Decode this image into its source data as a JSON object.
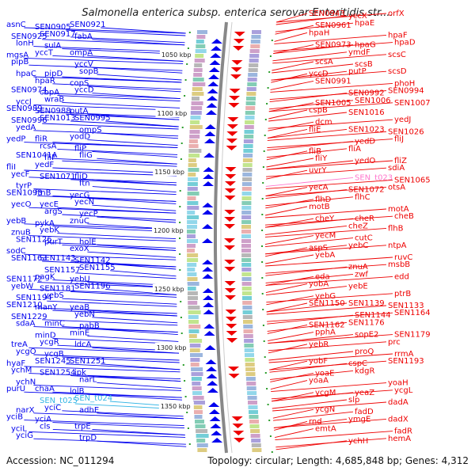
{
  "title": "Salmonella enterica subsp. enterica serovar Enteritidis str....",
  "footer": {
    "accession": "Accession: NC_011294",
    "summary": "Topology: circular; Length: 4,685,848 bp; Genes: 4,312"
  },
  "colors": {
    "reverse_strand": "#0000ee",
    "forward_strand": "#ee0000",
    "trna_rna": "#33b5e5",
    "highlight": "#ff77cc",
    "backbone": "#888888",
    "tick": "#2a9d2a"
  },
  "scale_labels": [
    "1050 kbp",
    "1100 kbp",
    "1150 kbp",
    "1200 kbp",
    "1250 kbp",
    "1300 kbp",
    "1350 kbp"
  ],
  "left_labels": [
    {
      "t": "asnC",
      "c": "blue"
    },
    {
      "t": "SEN0905",
      "c": "blue"
    },
    {
      "t": "SEN0921",
      "c": "blue"
    },
    {
      "t": "SEN0925",
      "c": "blue"
    },
    {
      "t": "SEN0917",
      "c": "blue"
    },
    {
      "t": "fabA",
      "c": "blue"
    },
    {
      "t": "lonH",
      "c": "blue"
    },
    {
      "t": "sulA",
      "c": "blue"
    },
    {
      "t": "ompA",
      "c": "blue"
    },
    {
      "t": "mgsA",
      "c": "blue"
    },
    {
      "t": "yccT",
      "c": "blue"
    },
    {
      "t": "yccV",
      "c": "blue"
    },
    {
      "t": "pipB",
      "c": "blue"
    },
    {
      "t": "pipD",
      "c": "blue"
    },
    {
      "t": "sopB",
      "c": "blue"
    },
    {
      "t": "hpaC",
      "c": "blue"
    },
    {
      "t": "hpaR",
      "c": "blue"
    },
    {
      "t": "copS",
      "c": "blue"
    },
    {
      "t": "SEN0974",
      "c": "blue"
    },
    {
      "t": "cbpA",
      "c": "blue"
    },
    {
      "t": "yccD",
      "c": "blue"
    },
    {
      "t": "yccJ",
      "c": "blue"
    },
    {
      "t": "wraB",
      "c": "blue"
    },
    {
      "t": "putA",
      "c": "blue"
    },
    {
      "t": "SEN0989",
      "c": "blue"
    },
    {
      "t": "SEN0988",
      "c": "blue"
    },
    {
      "t": "SEN0995",
      "c": "blue"
    },
    {
      "t": "SEN0996",
      "c": "blue"
    },
    {
      "t": "SEN1013",
      "c": "blue"
    },
    {
      "t": "ompS",
      "c": "blue"
    },
    {
      "t": "yedA",
      "c": "blue"
    },
    {
      "t": "fliR",
      "c": "blue"
    },
    {
      "t": "yodD",
      "c": "blue"
    },
    {
      "t": "yedP",
      "c": "blue"
    },
    {
      "t": "rcsA",
      "c": "blue"
    },
    {
      "t": "fliP",
      "c": "blue"
    },
    {
      "t": "SEN1041A",
      "c": "blue"
    },
    {
      "t": "fliF",
      "c": "blue"
    },
    {
      "t": "fliG",
      "c": "blue"
    },
    {
      "t": "fliI",
      "c": "blue"
    },
    {
      "t": "yedF",
      "c": "blue"
    },
    {
      "t": "fliD",
      "c": "blue"
    },
    {
      "t": "yecF",
      "c": "blue"
    },
    {
      "t": "SEN1071",
      "c": "blue"
    },
    {
      "t": "ftn",
      "c": "blue"
    },
    {
      "t": "tyrP",
      "c": "blue"
    },
    {
      "t": "ftnB",
      "c": "blue"
    },
    {
      "t": "yecG",
      "c": "blue"
    },
    {
      "t": "SEN1093",
      "c": "blue"
    },
    {
      "t": "yecE",
      "c": "blue"
    },
    {
      "t": "yecN",
      "c": "blue"
    },
    {
      "t": "yecO",
      "c": "blue"
    },
    {
      "t": "argS",
      "c": "blue"
    },
    {
      "t": "yecP",
      "c": "blue"
    },
    {
      "t": "yebB",
      "c": "blue"
    },
    {
      "t": "pykA",
      "c": "blue"
    },
    {
      "t": "znuC",
      "c": "blue"
    },
    {
      "t": "znuB",
      "c": "blue"
    },
    {
      "t": "yebK",
      "c": "blue"
    },
    {
      "t": "holE",
      "c": "blue"
    },
    {
      "t": "SEN1126",
      "c": "blue"
    },
    {
      "t": "purT",
      "c": "blue"
    },
    {
      "t": "exoX",
      "c": "blue"
    },
    {
      "t": "sodC",
      "c": "blue"
    },
    {
      "t": "SEN1143",
      "c": "blue"
    },
    {
      "t": "SEN1142",
      "c": "blue"
    },
    {
      "t": "SEN1163",
      "c": "blue"
    },
    {
      "t": "SEN1157",
      "c": "blue"
    },
    {
      "t": "SEN1155",
      "c": "blue"
    },
    {
      "t": "SEN1172",
      "c": "blue"
    },
    {
      "t": "pagK",
      "c": "blue"
    },
    {
      "t": "yebU",
      "c": "blue"
    },
    {
      "t": "yebW",
      "c": "blue"
    },
    {
      "t": "SEN1181",
      "c": "blue"
    },
    {
      "t": "SEN1196",
      "c": "blue"
    },
    {
      "t": "SEN1194",
      "c": "blue"
    },
    {
      "t": "yebS",
      "c": "blue"
    },
    {
      "t": "yeaB",
      "c": "blue"
    },
    {
      "t": "SEN1210",
      "c": "blue"
    },
    {
      "t": "manY",
      "c": "blue"
    },
    {
      "t": "yebN",
      "c": "blue"
    },
    {
      "t": "SEN1229",
      "c": "blue"
    },
    {
      "t": "minC",
      "c": "blue"
    },
    {
      "t": "pabB",
      "c": "blue"
    },
    {
      "t": "sdaA",
      "c": "blue"
    },
    {
      "t": "minD",
      "c": "blue"
    },
    {
      "t": "minE",
      "c": "blue"
    },
    {
      "t": "treA",
      "c": "blue"
    },
    {
      "t": "ycgR",
      "c": "blue"
    },
    {
      "t": "ldcA",
      "c": "blue"
    },
    {
      "t": "ycgO",
      "c": "blue"
    },
    {
      "t": "ycgB",
      "c": "blue"
    },
    {
      "t": "SEN1251",
      "c": "blue"
    },
    {
      "t": "hyaF",
      "c": "blue"
    },
    {
      "t": "SEN1245",
      "c": "blue"
    },
    {
      "t": "ipk",
      "c": "blue"
    },
    {
      "t": "ychM",
      "c": "blue"
    },
    {
      "t": "SEN1254",
      "c": "blue"
    },
    {
      "t": "narL",
      "c": "blue"
    },
    {
      "t": "ychN",
      "c": "blue"
    },
    {
      "t": "chaA",
      "c": "blue"
    },
    {
      "t": "lolB",
      "c": "blue"
    },
    {
      "t": "purU",
      "c": "blue"
    },
    {
      "t": "SEN_t025",
      "c": "cyan"
    },
    {
      "t": "SEN_t024",
      "c": "cyan"
    },
    {
      "t": "narX",
      "c": "blue"
    },
    {
      "t": "yciC",
      "c": "blue"
    },
    {
      "t": "adhE",
      "c": "blue"
    },
    {
      "t": "yciB",
      "c": "blue"
    },
    {
      "t": "yciA",
      "c": "blue"
    },
    {
      "t": "trpE",
      "c": "blue"
    },
    {
      "t": "yciL",
      "c": "blue"
    },
    {
      "t": "cls",
      "c": "blue"
    },
    {
      "t": "trpD",
      "c": "blue"
    },
    {
      "t": "yciG",
      "c": "blue"
    }
  ],
  "right_labels": [
    {
      "t": "SEN0943",
      "c": "red"
    },
    {
      "t": "yccX",
      "c": "red"
    },
    {
      "t": "orfX",
      "c": "red"
    },
    {
      "t": "SEN0961",
      "c": "red"
    },
    {
      "t": "hpaE",
      "c": "red"
    },
    {
      "t": "hpaF",
      "c": "red"
    },
    {
      "t": "hpaH",
      "c": "red"
    },
    {
      "t": "hpaG",
      "c": "red"
    },
    {
      "t": "hpaD",
      "c": "red"
    },
    {
      "t": "SEN0973",
      "c": "red"
    },
    {
      "t": "ymdF",
      "c": "red"
    },
    {
      "t": "scsC",
      "c": "red"
    },
    {
      "t": "scsA",
      "c": "red"
    },
    {
      "t": "scsB",
      "c": "red"
    },
    {
      "t": "scsD",
      "c": "red"
    },
    {
      "t": "yccD",
      "c": "red"
    },
    {
      "t": "putP",
      "c": "red"
    },
    {
      "t": "phoH",
      "c": "red"
    },
    {
      "t": "SEN0991",
      "c": "red"
    },
    {
      "t": "SEN0992",
      "c": "red"
    },
    {
      "t": "SEN0994",
      "c": "red"
    },
    {
      "t": "SEN1005",
      "c": "red"
    },
    {
      "t": "SEN1006",
      "c": "red"
    },
    {
      "t": "SEN1007",
      "c": "red"
    },
    {
      "t": "cspB",
      "c": "red"
    },
    {
      "t": "SEN1016",
      "c": "red"
    },
    {
      "t": "yedJ",
      "c": "red"
    },
    {
      "t": "dcm",
      "c": "red"
    },
    {
      "t": "SEN1023",
      "c": "red"
    },
    {
      "t": "SEN1026",
      "c": "red"
    },
    {
      "t": "fliE",
      "c": "red"
    },
    {
      "t": "yedD",
      "c": "red"
    },
    {
      "t": "fliJ",
      "c": "red"
    },
    {
      "t": "fliB",
      "c": "red"
    },
    {
      "t": "fliA",
      "c": "red"
    },
    {
      "t": "fliZ",
      "c": "red"
    },
    {
      "t": "fliY",
      "c": "red"
    },
    {
      "t": "yedO",
      "c": "red"
    },
    {
      "t": "sdiA",
      "c": "red"
    },
    {
      "t": "uvrY",
      "c": "red"
    },
    {
      "t": "SEN_t023",
      "c": "pink"
    },
    {
      "t": "SEN1065",
      "c": "red"
    },
    {
      "t": "yecA",
      "c": "red"
    },
    {
      "t": "SEN1072",
      "c": "red"
    },
    {
      "t": "otsA",
      "c": "red"
    },
    {
      "t": "flhD",
      "c": "red"
    },
    {
      "t": "flhC",
      "c": "red"
    },
    {
      "t": "motA",
      "c": "red"
    },
    {
      "t": "motB",
      "c": "red"
    },
    {
      "t": "cheR",
      "c": "red"
    },
    {
      "t": "cheB",
      "c": "red"
    },
    {
      "t": "cheY",
      "c": "red"
    },
    {
      "t": "cheZ",
      "c": "red"
    },
    {
      "t": "flhB",
      "c": "red"
    },
    {
      "t": "yecM",
      "c": "red"
    },
    {
      "t": "cutC",
      "c": "red"
    },
    {
      "t": "ntpA",
      "c": "red"
    },
    {
      "t": "aspS",
      "c": "red"
    },
    {
      "t": "yebC",
      "c": "red"
    },
    {
      "t": "ruvC",
      "c": "red"
    },
    {
      "t": "yebA",
      "c": "red"
    },
    {
      "t": "znuA",
      "c": "red"
    },
    {
      "t": "msbB",
      "c": "red"
    },
    {
      "t": "eda",
      "c": "red"
    },
    {
      "t": "zwf",
      "c": "red"
    },
    {
      "t": "edd",
      "c": "red"
    },
    {
      "t": "yobA",
      "c": "red"
    },
    {
      "t": "yebE",
      "c": "red"
    },
    {
      "t": "ptrB",
      "c": "red"
    },
    {
      "t": "yebG",
      "c": "red"
    },
    {
      "t": "SEN1139",
      "c": "red"
    },
    {
      "t": "SEN1133",
      "c": "red"
    },
    {
      "t": "SEN1150",
      "c": "red"
    },
    {
      "t": "SEN1144",
      "c": "red"
    },
    {
      "t": "SEN1164",
      "c": "red"
    },
    {
      "t": "SEN1162",
      "c": "red"
    },
    {
      "t": "SEN1176",
      "c": "red"
    },
    {
      "t": "SEN1179",
      "c": "red"
    },
    {
      "t": "pphA",
      "c": "red"
    },
    {
      "t": "sopE2",
      "c": "red"
    },
    {
      "t": "prc",
      "c": "red"
    },
    {
      "t": "yebR",
      "c": "red"
    },
    {
      "t": "proQ",
      "c": "red"
    },
    {
      "t": "rrmA",
      "c": "red"
    },
    {
      "t": "yobF",
      "c": "red"
    },
    {
      "t": "cspC",
      "c": "red"
    },
    {
      "t": "SEN1193",
      "c": "red"
    },
    {
      "t": "yoaE",
      "c": "red"
    },
    {
      "t": "kdgR",
      "c": "red"
    },
    {
      "t": "yoaH",
      "c": "red"
    },
    {
      "t": "yoaA",
      "c": "red"
    },
    {
      "t": "yeaZ",
      "c": "red"
    },
    {
      "t": "ycgL",
      "c": "red"
    },
    {
      "t": "ycgM",
      "c": "red"
    },
    {
      "t": "slp",
      "c": "red"
    },
    {
      "t": "dadA",
      "c": "red"
    },
    {
      "t": "ycgN",
      "c": "red"
    },
    {
      "t": "fadD",
      "c": "red"
    },
    {
      "t": "dadX",
      "c": "red"
    },
    {
      "t": "rnd",
      "c": "red"
    },
    {
      "t": "ymgE",
      "c": "red"
    },
    {
      "t": "fadR",
      "c": "red"
    },
    {
      "t": "emtA",
      "c": "red"
    },
    {
      "t": "ychH",
      "c": "red"
    },
    {
      "t": "hemA",
      "c": "red"
    }
  ]
}
